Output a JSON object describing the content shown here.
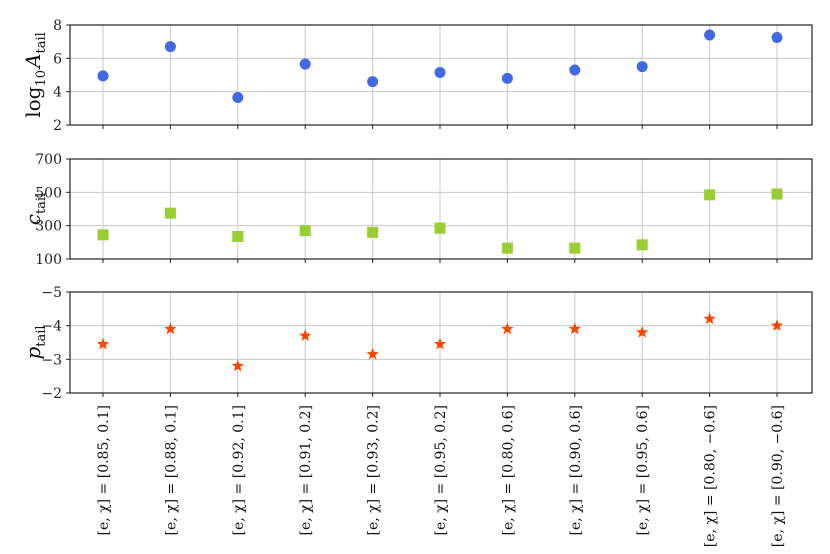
{
  "chart_data": {
    "type": "scatter",
    "categories": [
      "[e, χ] = [0.85, 0.1]",
      "[e, χ] = [0.88, 0.1]",
      "[e, χ] = [0.92, 0.1]",
      "[e, χ] = [0.91, 0.2]",
      "[e, χ] = [0.93, 0.2]",
      "[e, χ] = [0.95, 0.2]",
      "[e, χ] = [0.80, 0.6]",
      "[e, χ] = [0.90, 0.6]",
      "[e, χ] = [0.95, 0.6]",
      "[e, χ] = [0.80, −0.6]",
      "[e, χ] = [0.90, −0.6]"
    ],
    "panels": [
      {
        "ylabel": "log10 A_tail",
        "ylabel_main": "log",
        "ylabel_sub1": "10",
        "ylabel_var": "A",
        "ylabel_sub2": "tail",
        "ylim": [
          2,
          8
        ],
        "yticks": [
          2,
          4,
          6,
          8
        ],
        "ytick_labels": [
          "2",
          "4",
          "6",
          "8"
        ],
        "marker": "circle",
        "color": "#4169e1",
        "values": [
          4.95,
          6.7,
          3.65,
          5.65,
          4.6,
          5.15,
          4.8,
          5.3,
          5.5,
          7.4,
          7.25
        ]
      },
      {
        "ylabel": "c_tail",
        "ylabel_var": "c",
        "ylabel_sub": "tail",
        "ylim": [
          100,
          700
        ],
        "yticks": [
          100,
          300,
          500,
          700
        ],
        "ytick_labels": [
          "100",
          "300",
          "500",
          "700"
        ],
        "marker": "square",
        "color": "#9acd32",
        "values": [
          245,
          375,
          235,
          270,
          260,
          285,
          165,
          165,
          185,
          485,
          490
        ]
      },
      {
        "ylabel": "p_tail",
        "ylabel_var": "p",
        "ylabel_sub": "tail",
        "ylim": [
          -2,
          -5
        ],
        "yticks": [
          -2,
          -3,
          -4,
          -5
        ],
        "ytick_labels": [
          "−2",
          "−3",
          "−4",
          "−5"
        ],
        "marker": "star",
        "color": "#ff4500",
        "values": [
          -3.45,
          -3.9,
          -2.8,
          -3.7,
          -3.15,
          -3.45,
          -3.9,
          -3.9,
          -3.8,
          -4.2,
          -4.0
        ]
      }
    ],
    "grid": true,
    "legend": "none"
  }
}
